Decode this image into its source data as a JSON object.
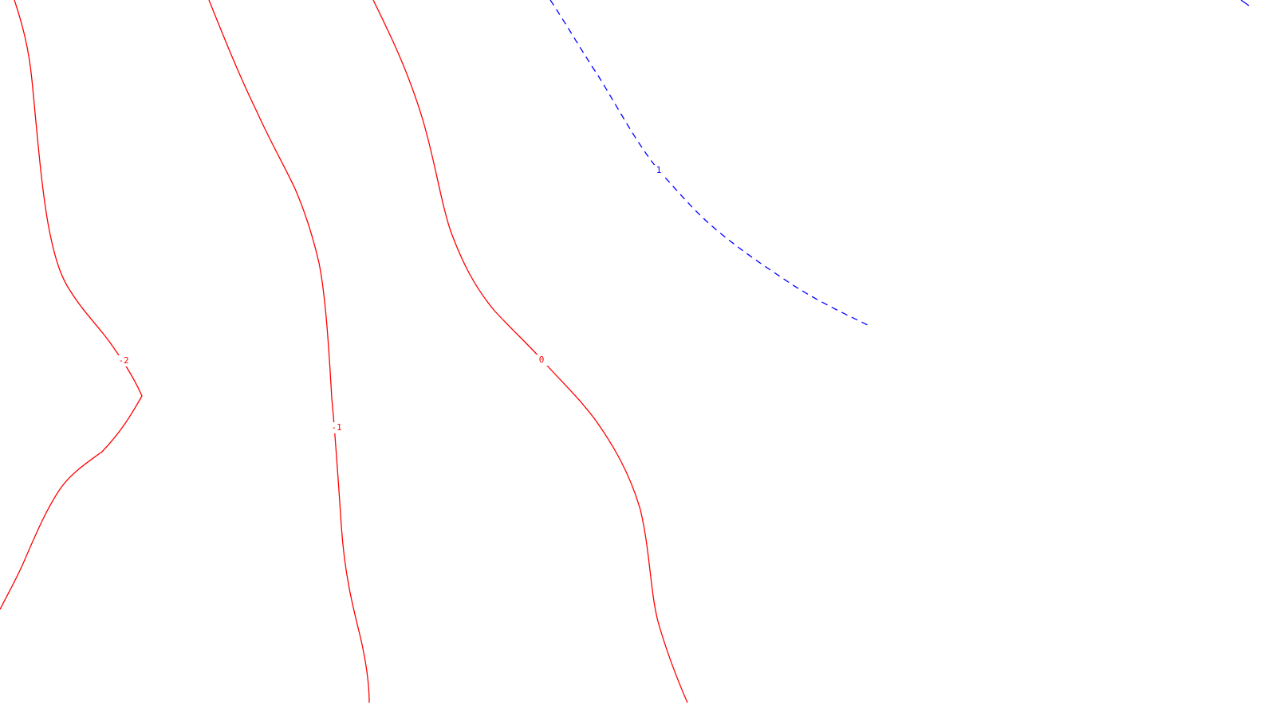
{
  "chart_data": {
    "type": "contour",
    "title": "",
    "xlabel": "",
    "ylabel": "",
    "grid": false,
    "colors": {
      "negative": "#ff0000",
      "zero": "#ff0000",
      "positive": "#0000ff",
      "background": "#ffffff"
    },
    "series": [
      {
        "name": "level-minus-2",
        "level": -2,
        "label": "-2",
        "style": "solid",
        "color": "#ff0000"
      },
      {
        "name": "level-minus-1",
        "level": -1,
        "label": "-1",
        "style": "solid",
        "color": "#ff0000"
      },
      {
        "name": "level-0",
        "level": 0,
        "label": "0",
        "style": "solid",
        "color": "#ff0000"
      },
      {
        "name": "level-1",
        "level": 1,
        "label": "1",
        "style": "dashed",
        "color": "#0000ff"
      }
    ]
  }
}
